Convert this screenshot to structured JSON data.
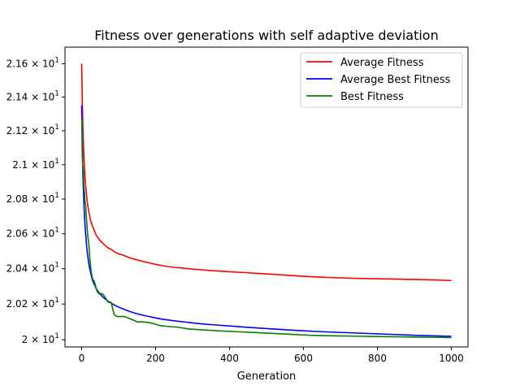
{
  "chart_data": {
    "type": "line",
    "title": "Fitness over generations with self adaptive deviation",
    "xlabel": "Generation",
    "ylabel": "",
    "xlim": [
      -45,
      1045
    ],
    "ylim": [
      19.96,
      21.7
    ],
    "y_scale": "log",
    "grid": false,
    "legend_position": "top-right",
    "x_ticks": [
      0,
      200,
      400,
      600,
      800,
      1000
    ],
    "y_ticks": [
      {
        "value": 20.0,
        "base": "2",
        "exp": "1"
      },
      {
        "value": 20.2,
        "base": "2.02",
        "exp": "1"
      },
      {
        "value": 20.4,
        "base": "2.04",
        "exp": "1"
      },
      {
        "value": 20.6,
        "base": "2.06",
        "exp": "1"
      },
      {
        "value": 20.8,
        "base": "2.08",
        "exp": "1"
      },
      {
        "value": 21.0,
        "base": "2.1",
        "exp": "1"
      },
      {
        "value": 21.2,
        "base": "2.12",
        "exp": "1"
      },
      {
        "value": 21.4,
        "base": "2.14",
        "exp": "1"
      },
      {
        "value": 21.6,
        "base": "2.16",
        "exp": "1"
      }
    ],
    "tick_mark": "×",
    "tick_ten": "10",
    "series": [
      {
        "name": "Average Fitness",
        "color": "#ff0000",
        "x": [
          0,
          2,
          4,
          6,
          8,
          10,
          13,
          16,
          20,
          25,
          30,
          40,
          50,
          60,
          70,
          80,
          90,
          100,
          115,
          130,
          150,
          175,
          200,
          225,
          250,
          275,
          300,
          330,
          360,
          400,
          440,
          480,
          520,
          560,
          600,
          650,
          700,
          750,
          800,
          850,
          900,
          950,
          1000
        ],
        "y": [
          21.6,
          21.35,
          21.18,
          21.06,
          20.97,
          20.9,
          20.83,
          20.77,
          20.72,
          20.67,
          20.64,
          20.59,
          20.56,
          20.54,
          20.52,
          20.51,
          20.495,
          20.485,
          20.475,
          20.462,
          20.45,
          20.437,
          20.425,
          20.415,
          20.408,
          20.403,
          20.398,
          20.393,
          20.388,
          20.383,
          20.378,
          20.373,
          20.368,
          20.362,
          20.357,
          20.352,
          20.348,
          20.345,
          20.343,
          20.341,
          20.339,
          20.337,
          20.333
        ]
      },
      {
        "name": "Average Best Fitness",
        "color": "#0000ff",
        "x": [
          0,
          2,
          4,
          6,
          8,
          10,
          13,
          16,
          20,
          25,
          30,
          40,
          50,
          60,
          70,
          80,
          90,
          100,
          115,
          130,
          150,
          175,
          200,
          225,
          250,
          275,
          300,
          330,
          360,
          400,
          440,
          480,
          520,
          560,
          600,
          650,
          700,
          750,
          800,
          850,
          900,
          950,
          1000
        ],
        "y": [
          21.35,
          21.05,
          20.9,
          20.78,
          20.69,
          20.62,
          20.54,
          20.48,
          20.42,
          20.37,
          20.33,
          20.285,
          20.255,
          20.235,
          20.218,
          20.205,
          20.193,
          20.183,
          20.17,
          20.158,
          20.145,
          20.133,
          20.122,
          20.113,
          20.106,
          20.1,
          20.094,
          20.088,
          20.083,
          20.077,
          20.071,
          20.065,
          20.06,
          20.055,
          20.05,
          20.045,
          20.041,
          20.037,
          20.033,
          20.029,
          20.025,
          20.022,
          20.019
        ]
      },
      {
        "name": "Best Fitness",
        "color": "#008000",
        "x": [
          0,
          2,
          3,
          5,
          6,
          8,
          9,
          11,
          12,
          14,
          16,
          20,
          22,
          26,
          30,
          34,
          38,
          42,
          46,
          52,
          58,
          66,
          72,
          80,
          88,
          96,
          105,
          115,
          128,
          140,
          150,
          165,
          180,
          195,
          210,
          230,
          260,
          290,
          330,
          370,
          420,
          470,
          520,
          570,
          620,
          680,
          740,
          800,
          900,
          1000
        ],
        "y": [
          21.27,
          21.2,
          21.0,
          20.95,
          20.88,
          20.83,
          20.79,
          20.76,
          20.72,
          20.66,
          20.6,
          20.53,
          20.46,
          20.38,
          20.34,
          20.33,
          20.3,
          20.27,
          20.26,
          20.26,
          20.255,
          20.23,
          20.21,
          20.21,
          20.14,
          20.13,
          20.13,
          20.13,
          20.12,
          20.11,
          20.1,
          20.1,
          20.097,
          20.09,
          20.08,
          20.075,
          20.07,
          20.06,
          20.055,
          20.05,
          20.045,
          20.04,
          20.035,
          20.03,
          20.025,
          20.022,
          20.02,
          20.018,
          20.015,
          20.012
        ]
      }
    ]
  }
}
